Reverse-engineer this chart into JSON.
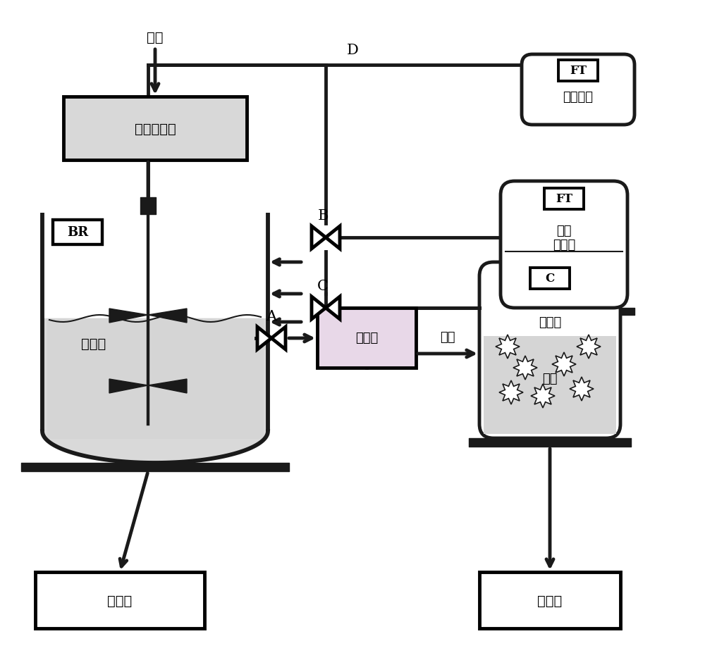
{
  "bg_color": "#f0f0f0",
  "line_color": "#1a1a1a",
  "box_fill_light": "#d8d8d8",
  "box_fill_white": "#ffffff",
  "liquid_fill": "#c8c8c8",
  "lw": 3.5,
  "labels": {
    "jun_zhu": "菌株",
    "fa_jiao_pei_yang_ji_top": "发酵培养基",
    "fa_jiao_ye": "发酵液",
    "zhong_chan_wu": "终产物",
    "fa_jiao_ye_box": "发酵液",
    "jie_jing": "结晶",
    "shang_qing_ye": "上清液",
    "jing_ti": "晶体",
    "zhong_chan_wu2": "终产物",
    "pu_tao_tang_fen": "葡萄糖粉",
    "fa_jiao_pei_yang_ji_right": "发酵\n培养基",
    "BR": "BR",
    "FT1": "FT",
    "FT2": "FT",
    "C_label": "C",
    "A": "A",
    "B": "B",
    "C": "C",
    "D": "D"
  }
}
